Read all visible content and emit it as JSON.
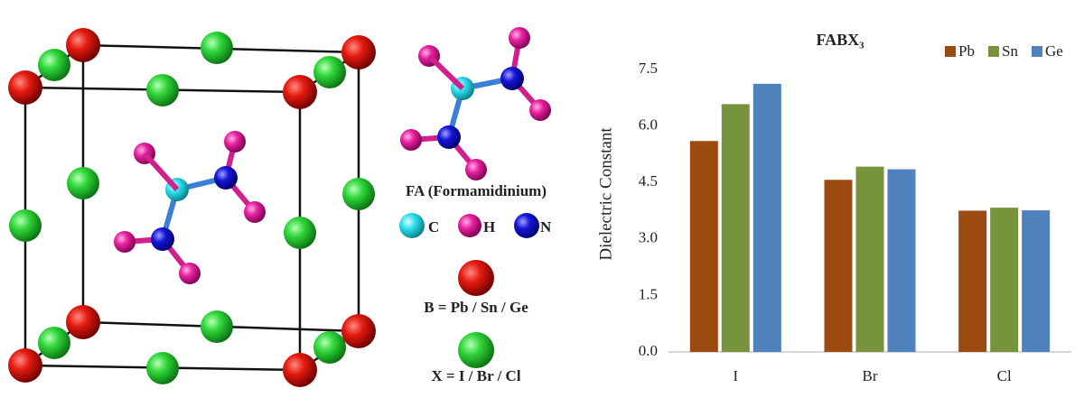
{
  "chart_data": {
    "type": "bar",
    "title": "FABX₃",
    "y_label": "Dielectric Constant",
    "categories": [
      "I",
      "Br",
      "Cl"
    ],
    "series": [
      {
        "name": "Pb",
        "color": "#9c4a0f",
        "values": [
          5.6,
          4.57,
          3.75
        ]
      },
      {
        "name": "Sn",
        "color": "#77933c",
        "values": [
          6.58,
          4.92,
          3.83
        ]
      },
      {
        "name": "Ge",
        "color": "#4f81bd",
        "values": [
          7.12,
          4.85,
          3.76
        ]
      }
    ],
    "ylim": [
      0,
      7.5
    ],
    "yticks": [
      {
        "value": 0,
        "label": "0.0"
      },
      {
        "value": 1.5,
        "label": "1.5"
      },
      {
        "value": 3,
        "label": "3.0"
      },
      {
        "value": 4.5,
        "label": "4.5"
      },
      {
        "value": 6,
        "label": "6.0"
      },
      {
        "value": 7.5,
        "label": "7.5"
      }
    ],
    "grid": false,
    "legend": "top-right"
  },
  "diagram": {
    "molecule_label": "FA (Formamidinium)",
    "atoms": [
      {
        "label": "C"
      },
      {
        "label": "H"
      },
      {
        "label": "N"
      }
    ],
    "b_label": "B = Pb / Sn / Ge",
    "x_label": "X = I / Br / Cl"
  }
}
